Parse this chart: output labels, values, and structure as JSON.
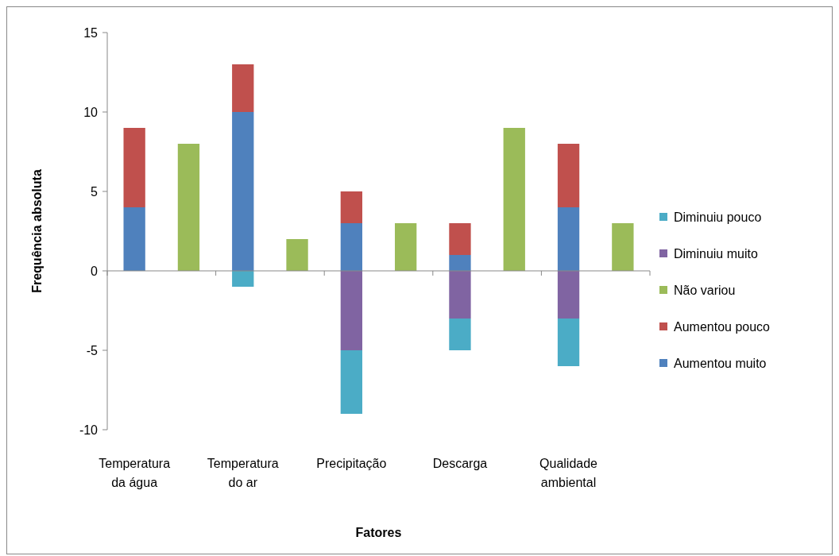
{
  "chart_data": {
    "type": "bar",
    "stacked": true,
    "xlabel": "Fatores",
    "ylabel": "Frequência absoluta",
    "categories": [
      "Temperatura da água",
      null,
      "Temperatura do ar",
      null,
      "Precipitação",
      null,
      "Descarga",
      null,
      "Qualidade ambiental",
      null
    ],
    "series": [
      {
        "name": "Aumentou muito",
        "color": "#4f81bd",
        "values": [
          4,
          null,
          10,
          null,
          3,
          null,
          1,
          null,
          4,
          null
        ]
      },
      {
        "name": "Aumentou pouco",
        "color": "#c0504d",
        "values": [
          5,
          null,
          3,
          null,
          2,
          null,
          2,
          null,
          4,
          null
        ]
      },
      {
        "name": "Não variou",
        "color": "#9bbb59",
        "values": [
          null,
          8,
          null,
          2,
          null,
          3,
          null,
          9,
          null,
          3
        ]
      },
      {
        "name": "Diminuiu muito",
        "color": "#8064a2",
        "values": [
          null,
          null,
          null,
          null,
          -5,
          null,
          -3,
          null,
          -3,
          null
        ]
      },
      {
        "name": "Diminuiu pouco",
        "color": "#4bacc6",
        "values": [
          null,
          null,
          -1,
          null,
          -4,
          null,
          -2,
          null,
          -3,
          null
        ]
      }
    ],
    "ylim": [
      -10,
      15
    ],
    "yticks": [
      -10,
      -5,
      0,
      5,
      10,
      15
    ],
    "legend": "right"
  }
}
